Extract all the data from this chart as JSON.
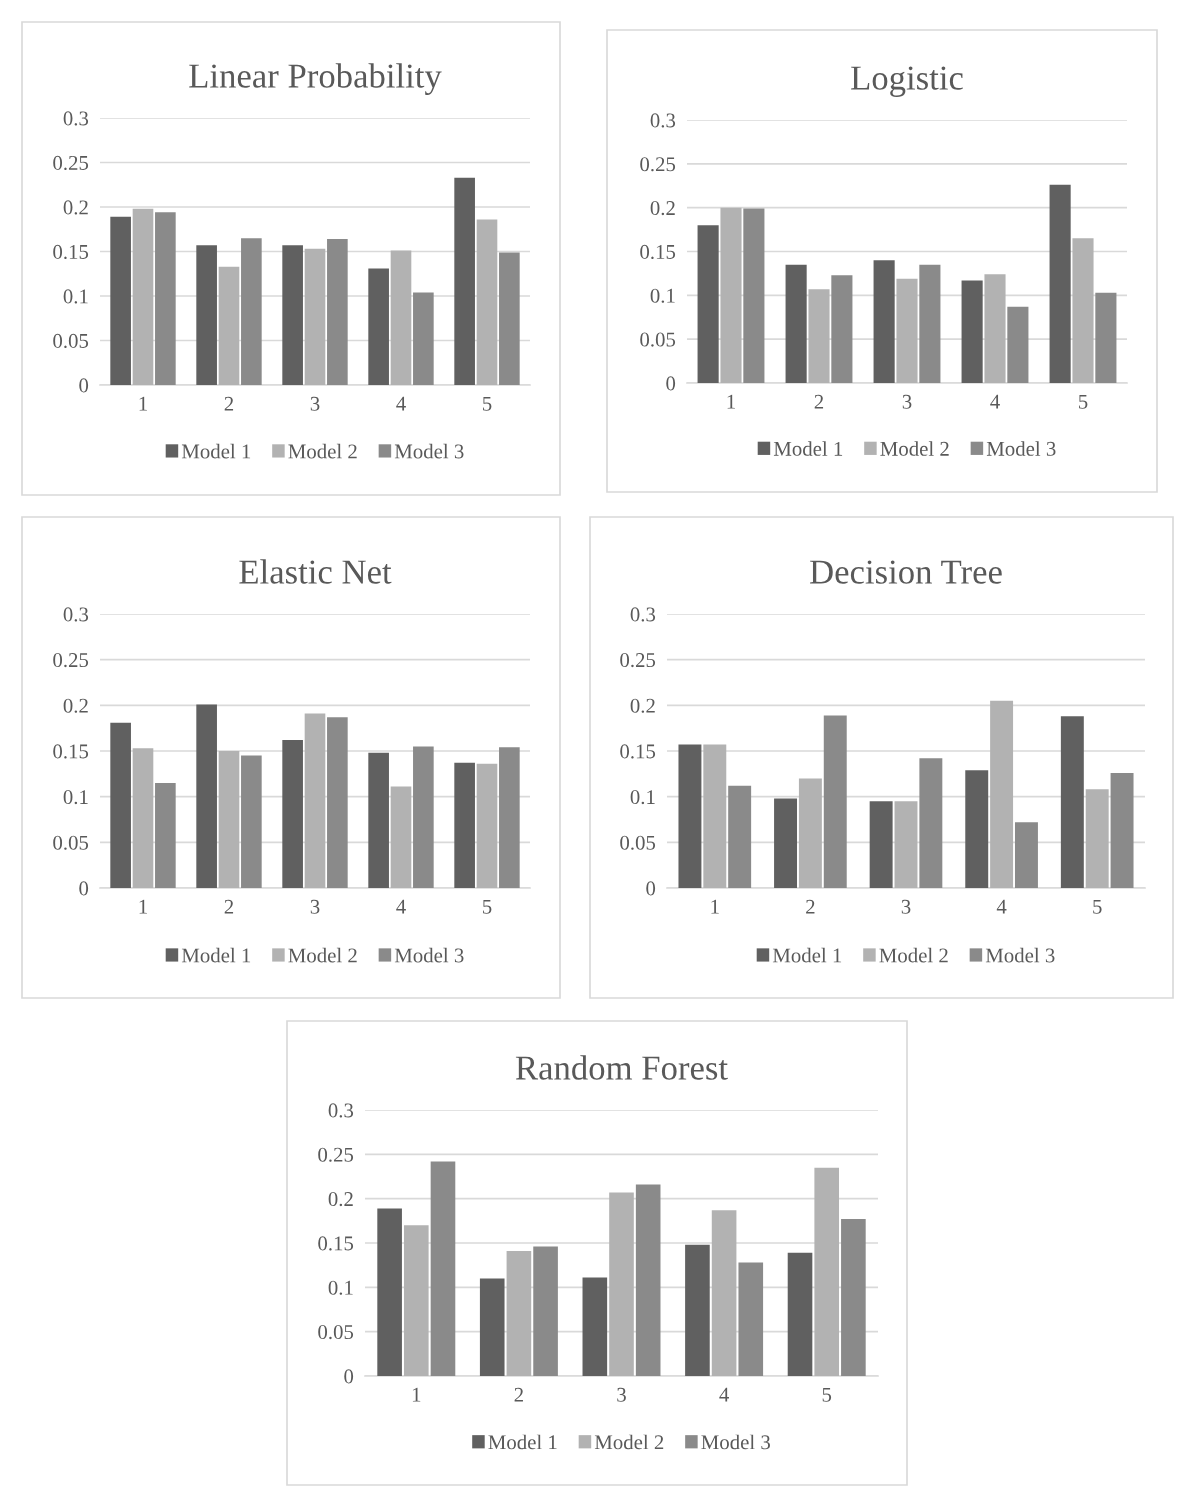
{
  "chart_data": [
    {
      "type": "bar",
      "title": "Linear Probability",
      "categories": [
        "1",
        "2",
        "3",
        "4",
        "5"
      ],
      "ylim": [
        0,
        0.3
      ],
      "yticks": [
        0,
        0.05,
        0.1,
        0.15,
        0.2,
        0.25,
        0.3
      ],
      "grid": "y",
      "legend": "bottom",
      "series": [
        {
          "name": "Model 1",
          "color": "#606060",
          "values": [
            0.189,
            0.157,
            0.157,
            0.131,
            0.233
          ]
        },
        {
          "name": "Model 2",
          "color": "#b2b2b2",
          "values": [
            0.198,
            0.133,
            0.153,
            0.151,
            0.186
          ]
        },
        {
          "name": "Model 3",
          "color": "#8a8a8a",
          "values": [
            0.194,
            0.165,
            0.164,
            0.104,
            0.149
          ]
        }
      ]
    },
    {
      "type": "bar",
      "title": "Logistic",
      "categories": [
        "1",
        "2",
        "3",
        "4",
        "5"
      ],
      "ylim": [
        0,
        0.3
      ],
      "yticks": [
        0,
        0.05,
        0.1,
        0.15,
        0.2,
        0.25,
        0.3
      ],
      "grid": "y",
      "legend": "bottom",
      "series": [
        {
          "name": "Model 1",
          "color": "#606060",
          "values": [
            0.18,
            0.135,
            0.14,
            0.117,
            0.226
          ]
        },
        {
          "name": "Model 2",
          "color": "#b2b2b2",
          "values": [
            0.2,
            0.107,
            0.119,
            0.124,
            0.165
          ]
        },
        {
          "name": "Model 3",
          "color": "#8a8a8a",
          "values": [
            0.199,
            0.123,
            0.135,
            0.087,
            0.103
          ]
        }
      ]
    },
    {
      "type": "bar",
      "title": "Elastic Net",
      "categories": [
        "1",
        "2",
        "3",
        "4",
        "5"
      ],
      "ylim": [
        0,
        0.3
      ],
      "yticks": [
        0,
        0.05,
        0.1,
        0.15,
        0.2,
        0.25,
        0.3
      ],
      "grid": "y",
      "legend": "bottom",
      "series": [
        {
          "name": "Model 1",
          "color": "#606060",
          "values": [
            0.181,
            0.201,
            0.162,
            0.148,
            0.137
          ]
        },
        {
          "name": "Model 2",
          "color": "#b2b2b2",
          "values": [
            0.153,
            0.15,
            0.191,
            0.111,
            0.136
          ]
        },
        {
          "name": "Model 3",
          "color": "#8a8a8a",
          "values": [
            0.115,
            0.145,
            0.187,
            0.155,
            0.154
          ]
        }
      ]
    },
    {
      "type": "bar",
      "title": "Decision Tree",
      "categories": [
        "1",
        "2",
        "3",
        "4",
        "5"
      ],
      "ylim": [
        0,
        0.3
      ],
      "yticks": [
        0,
        0.05,
        0.1,
        0.15,
        0.2,
        0.25,
        0.3
      ],
      "grid": "y",
      "legend": "bottom",
      "series": [
        {
          "name": "Model 1",
          "color": "#606060",
          "values": [
            0.157,
            0.098,
            0.095,
            0.129,
            0.188
          ]
        },
        {
          "name": "Model 2",
          "color": "#b2b2b2",
          "values": [
            0.157,
            0.12,
            0.095,
            0.205,
            0.108
          ]
        },
        {
          "name": "Model 3",
          "color": "#8a8a8a",
          "values": [
            0.112,
            0.189,
            0.142,
            0.072,
            0.126
          ]
        }
      ]
    },
    {
      "type": "bar",
      "title": "Random Forest",
      "categories": [
        "1",
        "2",
        "3",
        "4",
        "5"
      ],
      "ylim": [
        0,
        0.3
      ],
      "yticks": [
        0,
        0.05,
        0.1,
        0.15,
        0.2,
        0.25,
        0.3
      ],
      "grid": "y",
      "legend": "bottom",
      "series": [
        {
          "name": "Model 1",
          "color": "#606060",
          "values": [
            0.189,
            0.11,
            0.111,
            0.148,
            0.139
          ]
        },
        {
          "name": "Model 2",
          "color": "#b2b2b2",
          "values": [
            0.17,
            0.141,
            0.207,
            0.187,
            0.235
          ]
        },
        {
          "name": "Model 3",
          "color": "#8a8a8a",
          "values": [
            0.242,
            0.146,
            0.216,
            0.128,
            0.177
          ]
        }
      ]
    }
  ]
}
